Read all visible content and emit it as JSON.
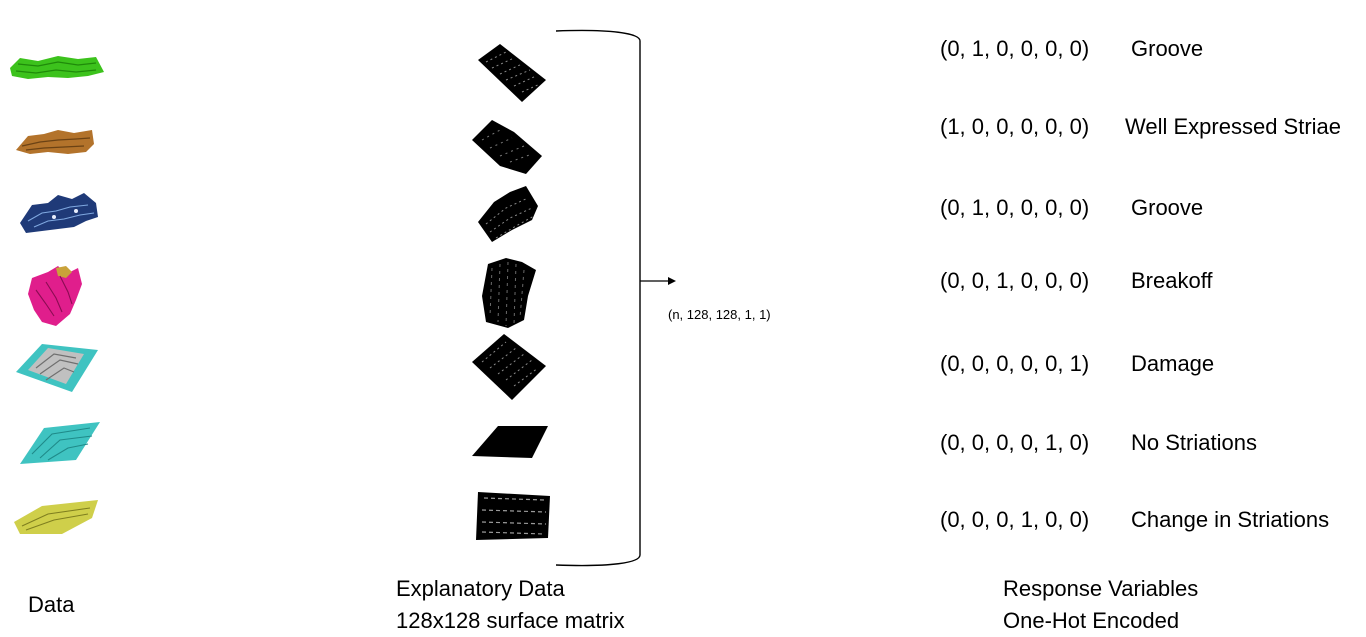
{
  "left_label": "Data",
  "middle_label": {
    "line1": "Explanatory Data",
    "line2": "128x128 surface matrix"
  },
  "right_label": {
    "line1": "Response Variables",
    "line2": "One-Hot Encoded"
  },
  "tensor_shape": "(n, 128, 128, 1, 1)",
  "samples": [
    {
      "color": "#3cc21c",
      "code": "(0, 1, 0, 0, 0, 0)",
      "class": "Groove"
    },
    {
      "color": "#b3732b",
      "code": "(1, 0, 0, 0, 0, 0)",
      "class": "Well Expressed Striae"
    },
    {
      "color": "#1f3a78",
      "code": "(0, 1, 0, 0, 0, 0)",
      "class": "Groove"
    },
    {
      "color": "#e01e8c",
      "code": "(0, 0, 1, 0, 0, 0)",
      "class": "Breakoff"
    },
    {
      "color": "#c0c0c0",
      "code": "(0, 0, 0, 0, 0, 1)",
      "class": "Damage"
    },
    {
      "color": "#3fc3c1",
      "code": "(0, 0, 0, 0, 1, 0)",
      "class": "No Striations"
    },
    {
      "color": "#cfcf4a",
      "code": "(0, 0, 0, 1, 0, 0)",
      "class": "Change in Striations"
    }
  ]
}
